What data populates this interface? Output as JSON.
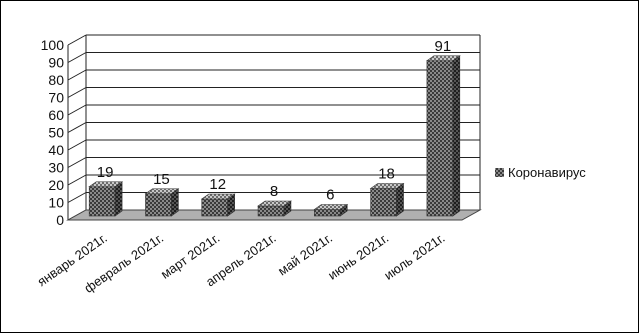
{
  "chart_data": {
    "type": "bar",
    "categories": [
      "январь 2021г.",
      "февраль 2021г.",
      "март 2021г.",
      "апрель 2021г.",
      "май 2021г.",
      "июнь 2021г.",
      "июль 2021г."
    ],
    "series": [
      {
        "name": "Коронавирус",
        "values": [
          19,
          15,
          12,
          8,
          6,
          18,
          91
        ]
      }
    ],
    "data_labels": [
      "19",
      "15",
      "12",
      "8",
      "6",
      "18",
      "91"
    ],
    "ylim": [
      0,
      100
    ],
    "yticks": [
      0,
      10,
      20,
      30,
      40,
      50,
      60,
      70,
      80,
      90,
      100
    ],
    "grid": true,
    "legend_position": "right",
    "style": "3d-columns",
    "colors": {
      "bar_front": "#7a7a7a",
      "bar_side": "#3c3c3c",
      "bar_top": "#b4b4b4",
      "grid": "#222222",
      "floor": "#9a9a9a"
    }
  }
}
